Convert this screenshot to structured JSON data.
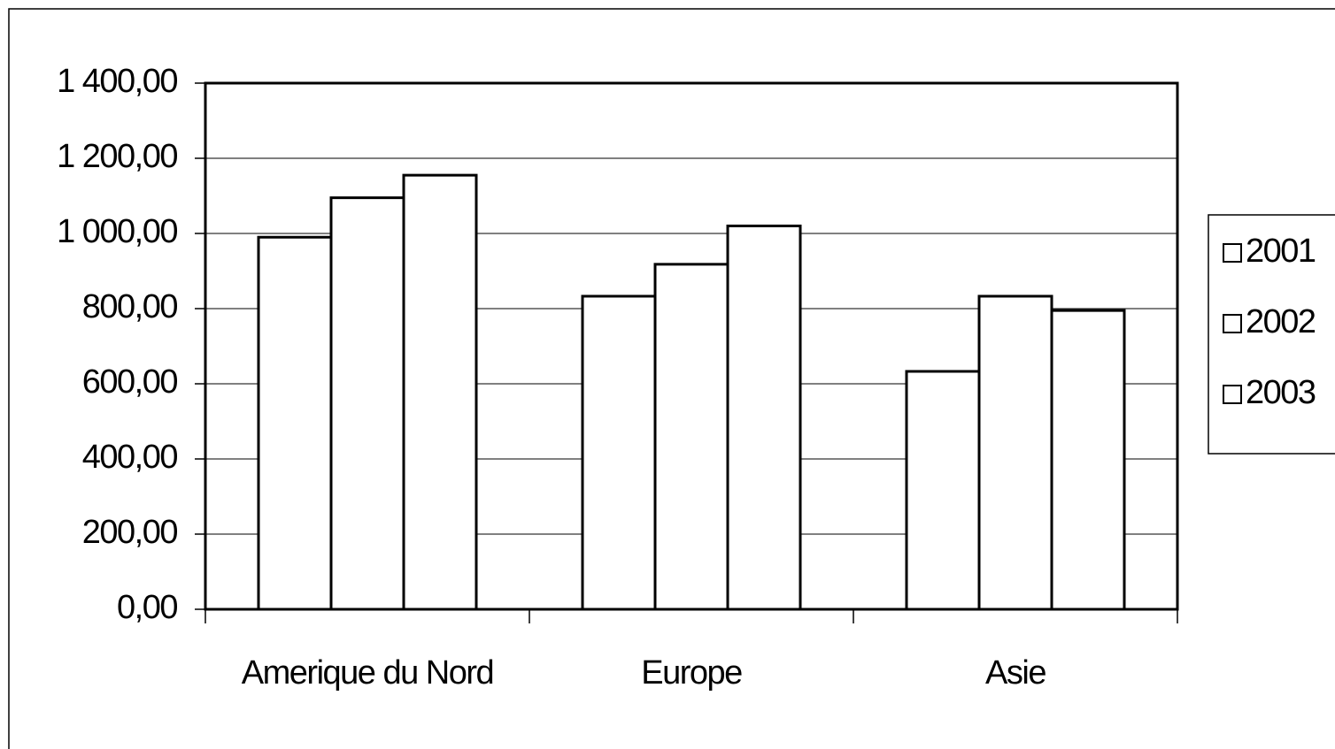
{
  "chart_data": {
    "type": "bar",
    "categories": [
      "Amerique du Nord",
      "Europe",
      "Asie"
    ],
    "series": [
      {
        "name": "2001",
        "color": "#ffffff",
        "values": [
          990,
          833,
          633
        ]
      },
      {
        "name": "2002",
        "color": "#ffffff",
        "values": [
          1095,
          918,
          833
        ]
      },
      {
        "name": "2003",
        "color": "#ffffff",
        "values": [
          1155,
          1020,
          795
        ]
      }
    ],
    "ylim": [
      0,
      1400
    ],
    "yticks": [
      {
        "value": 0,
        "label": "0,00"
      },
      {
        "value": 200,
        "label": "200,00"
      },
      {
        "value": 400,
        "label": "400,00"
      },
      {
        "value": 600,
        "label": "600,00"
      },
      {
        "value": 800,
        "label": "800,00"
      },
      {
        "value": 1000,
        "label": "1 000,00"
      },
      {
        "value": 1200,
        "label": "1 200,00"
      },
      {
        "value": 1400,
        "label": "1 400,00"
      }
    ],
    "grid": true,
    "legend": "right"
  }
}
